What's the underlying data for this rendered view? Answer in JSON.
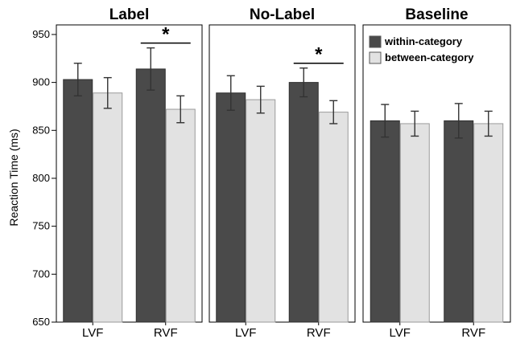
{
  "chart_data": {
    "type": "bar",
    "ylabel": "Reaction Time (ms)",
    "ylim": [
      650,
      960
    ],
    "yticks": [
      650,
      700,
      750,
      800,
      850,
      900,
      950
    ],
    "legend": {
      "placement": "top-right of Baseline panel",
      "entries": [
        "within-category",
        "between-category"
      ]
    },
    "colors": {
      "within-category": "#4a4a4a",
      "between-category": "#e2e2e2"
    },
    "panels": [
      {
        "title": "Label",
        "categories": [
          "LVF",
          "RVF"
        ],
        "series": [
          {
            "name": "within-category",
            "values": [
              903,
              914
            ],
            "errors": [
              17,
              22
            ]
          },
          {
            "name": "between-category",
            "values": [
              889,
              872
            ],
            "errors": [
              16,
              14
            ]
          }
        ],
        "significance": [
          {
            "category": "RVF",
            "symbol": "*"
          }
        ]
      },
      {
        "title": "No-Label",
        "categories": [
          "LVF",
          "RVF"
        ],
        "series": [
          {
            "name": "within-category",
            "values": [
              889,
              900
            ],
            "errors": [
              18,
              15
            ]
          },
          {
            "name": "between-category",
            "values": [
              882,
              869
            ],
            "errors": [
              14,
              12
            ]
          }
        ],
        "significance": [
          {
            "category": "RVF",
            "symbol": "*"
          }
        ]
      },
      {
        "title": "Baseline",
        "categories": [
          "LVF",
          "RVF"
        ],
        "series": [
          {
            "name": "within-category",
            "values": [
              860,
              860
            ],
            "errors": [
              17,
              18
            ]
          },
          {
            "name": "between-category",
            "values": [
              857,
              857
            ],
            "errors": [
              13,
              13
            ]
          }
        ],
        "significance": []
      }
    ]
  }
}
